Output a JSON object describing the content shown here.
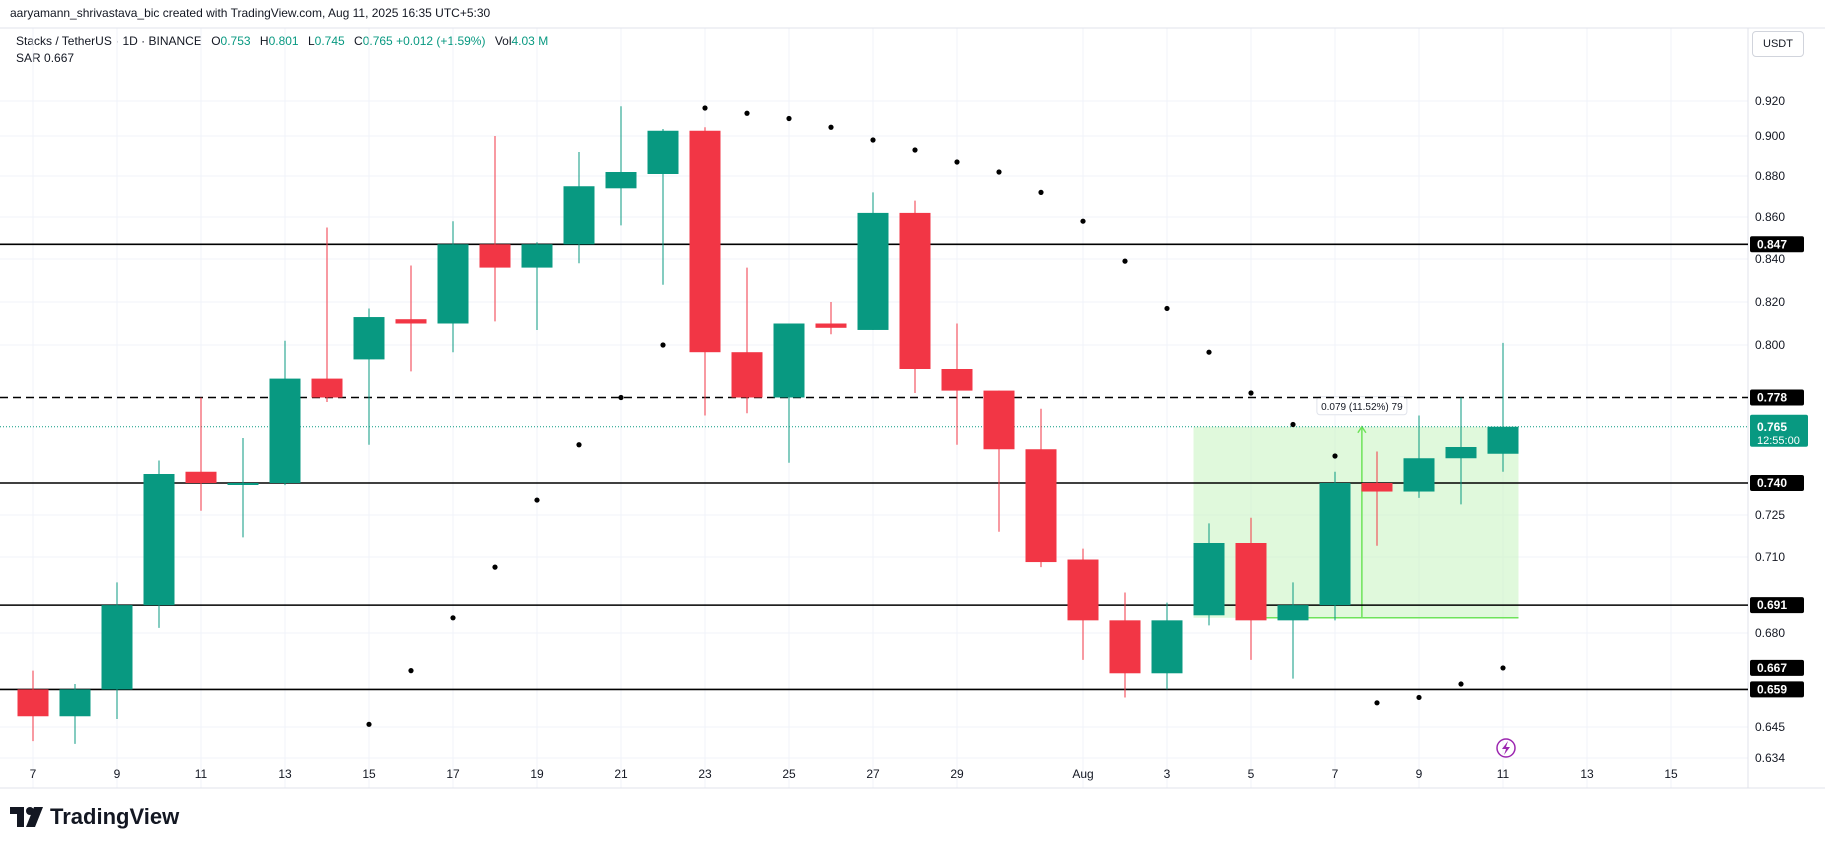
{
  "header": {
    "attribution": "aaryamann_shrivastava_bic created with TradingView.com, Aug 11, 2025 16:35 UTC+5:30"
  },
  "legend": {
    "symbol": "Stacks / TetherUS · 1D · BINANCE",
    "open_label": "O",
    "open": "0.753",
    "high_label": "H",
    "high": "0.801",
    "low_label": "L",
    "low": "0.745",
    "close_label": "C",
    "close": "0.765",
    "change": "+0.012 (+1.59%)",
    "vol_label": "Vol",
    "vol": "4.03 M"
  },
  "sar_legend": {
    "label": "SAR",
    "value": "0.667"
  },
  "currency_button": {
    "label": "USDT"
  },
  "logo": {
    "text": "TradingView"
  },
  "colors": {
    "up": "#089981",
    "down": "#f23645",
    "measure_fill": "#ccf5c4",
    "measure_line": "#6ee35a"
  },
  "chart_data": {
    "type": "candlestick",
    "title": "Stacks / TetherUS · 1D · BINANCE",
    "ylim": [
      0.634,
      0.93
    ],
    "y_ticks": [
      {
        "value": 0.92,
        "label": "0.920"
      },
      {
        "value": 0.9,
        "label": "0.900"
      },
      {
        "value": 0.88,
        "label": "0.880"
      },
      {
        "value": 0.86,
        "label": "0.860"
      },
      {
        "value": 0.84,
        "label": "0.840"
      },
      {
        "value": 0.82,
        "label": "0.820"
      },
      {
        "value": 0.8,
        "label": "0.800"
      },
      {
        "value": 0.725,
        "label": "0.725"
      },
      {
        "value": 0.71,
        "label": "0.710"
      },
      {
        "value": 0.68,
        "label": "0.680"
      },
      {
        "value": 0.645,
        "label": "0.645"
      },
      {
        "value": 0.634,
        "label": "0.634"
      }
    ],
    "x_ticks": [
      {
        "i": 0,
        "label": "7"
      },
      {
        "i": 2,
        "label": "9"
      },
      {
        "i": 4,
        "label": "11"
      },
      {
        "i": 6,
        "label": "13"
      },
      {
        "i": 8,
        "label": "15"
      },
      {
        "i": 10,
        "label": "17"
      },
      {
        "i": 12,
        "label": "19"
      },
      {
        "i": 14,
        "label": "21"
      },
      {
        "i": 16,
        "label": "23"
      },
      {
        "i": 18,
        "label": "25"
      },
      {
        "i": 20,
        "label": "27"
      },
      {
        "i": 22,
        "label": "29"
      },
      {
        "i": 25,
        "label": "Aug"
      },
      {
        "i": 27,
        "label": "3"
      },
      {
        "i": 29,
        "label": "5"
      },
      {
        "i": 31,
        "label": "7"
      },
      {
        "i": 33,
        "label": "9"
      },
      {
        "i": 35,
        "label": "11"
      },
      {
        "i": 37,
        "label": "13"
      },
      {
        "i": 39,
        "label": "15"
      }
    ],
    "candles": [
      {
        "o": 0.659,
        "h": 0.666,
        "l": 0.64,
        "c": 0.649
      },
      {
        "o": 0.649,
        "h": 0.661,
        "l": 0.639,
        "c": 0.659
      },
      {
        "o": 0.659,
        "h": 0.7,
        "l": 0.648,
        "c": 0.691
      },
      {
        "o": 0.691,
        "h": 0.75,
        "l": 0.682,
        "c": 0.744
      },
      {
        "o": 0.745,
        "h": 0.778,
        "l": 0.727,
        "c": 0.74
      },
      {
        "o": 0.74,
        "h": 0.76,
        "l": 0.717,
        "c": 0.74
      },
      {
        "o": 0.74,
        "h": 0.802,
        "l": 0.739,
        "c": 0.786
      },
      {
        "o": 0.786,
        "h": 0.855,
        "l": 0.776,
        "c": 0.778
      },
      {
        "o": 0.794,
        "h": 0.817,
        "l": 0.757,
        "c": 0.813
      },
      {
        "o": 0.812,
        "h": 0.837,
        "l": 0.789,
        "c": 0.81
      },
      {
        "o": 0.81,
        "h": 0.858,
        "l": 0.797,
        "c": 0.847
      },
      {
        "o": 0.847,
        "h": 0.9,
        "l": 0.811,
        "c": 0.836
      },
      {
        "o": 0.836,
        "h": 0.848,
        "l": 0.807,
        "c": 0.847
      },
      {
        "o": 0.847,
        "h": 0.892,
        "l": 0.838,
        "c": 0.875
      },
      {
        "o": 0.874,
        "h": 0.917,
        "l": 0.856,
        "c": 0.882
      },
      {
        "o": 0.881,
        "h": 0.904,
        "l": 0.828,
        "c": 0.903
      },
      {
        "o": 0.903,
        "h": 0.905,
        "l": 0.77,
        "c": 0.797
      },
      {
        "o": 0.797,
        "h": 0.836,
        "l": 0.771,
        "c": 0.778
      },
      {
        "o": 0.778,
        "h": 0.81,
        "l": 0.749,
        "c": 0.81
      },
      {
        "o": 0.81,
        "h": 0.82,
        "l": 0.805,
        "c": 0.808
      },
      {
        "o": 0.807,
        "h": 0.872,
        "l": 0.807,
        "c": 0.862
      },
      {
        "o": 0.862,
        "h": 0.868,
        "l": 0.78,
        "c": 0.79
      },
      {
        "o": 0.79,
        "h": 0.81,
        "l": 0.757,
        "c": 0.781
      },
      {
        "o": 0.781,
        "h": 0.781,
        "l": 0.719,
        "c": 0.755
      },
      {
        "o": 0.755,
        "h": 0.773,
        "l": 0.706,
        "c": 0.708
      },
      {
        "o": 0.709,
        "h": 0.713,
        "l": 0.67,
        "c": 0.685
      },
      {
        "o": 0.685,
        "h": 0.696,
        "l": 0.656,
        "c": 0.665
      },
      {
        "o": 0.665,
        "h": 0.692,
        "l": 0.659,
        "c": 0.685
      },
      {
        "o": 0.687,
        "h": 0.722,
        "l": 0.683,
        "c": 0.715
      },
      {
        "o": 0.715,
        "h": 0.724,
        "l": 0.67,
        "c": 0.685
      },
      {
        "o": 0.685,
        "h": 0.7,
        "l": 0.663,
        "c": 0.691
      },
      {
        "o": 0.691,
        "h": 0.745,
        "l": 0.685,
        "c": 0.74
      },
      {
        "o": 0.74,
        "h": 0.754,
        "l": 0.714,
        "c": 0.736
      },
      {
        "o": 0.736,
        "h": 0.77,
        "l": 0.733,
        "c": 0.751
      },
      {
        "o": 0.751,
        "h": 0.778,
        "l": 0.73,
        "c": 0.756
      },
      {
        "o": 0.753,
        "h": 0.801,
        "l": 0.745,
        "c": 0.765
      }
    ],
    "sar": [
      {
        "i": 8,
        "v": 0.646
      },
      {
        "i": 9,
        "v": 0.666
      },
      {
        "i": 10,
        "v": 0.686
      },
      {
        "i": 11,
        "v": 0.706
      },
      {
        "i": 12,
        "v": 0.732
      },
      {
        "i": 13,
        "v": 0.757
      },
      {
        "i": 14,
        "v": 0.778
      },
      {
        "i": 15,
        "v": 0.8
      },
      {
        "i": 16,
        "v": 0.916
      },
      {
        "i": 17,
        "v": 0.913
      },
      {
        "i": 18,
        "v": 0.91
      },
      {
        "i": 19,
        "v": 0.905
      },
      {
        "i": 20,
        "v": 0.898
      },
      {
        "i": 21,
        "v": 0.893
      },
      {
        "i": 22,
        "v": 0.887
      },
      {
        "i": 23,
        "v": 0.882
      },
      {
        "i": 24,
        "v": 0.872
      },
      {
        "i": 25,
        "v": 0.858
      },
      {
        "i": 26,
        "v": 0.839
      },
      {
        "i": 27,
        "v": 0.817
      },
      {
        "i": 28,
        "v": 0.797
      },
      {
        "i": 29,
        "v": 0.78
      },
      {
        "i": 30,
        "v": 0.766
      },
      {
        "i": 31,
        "v": 0.752
      },
      {
        "i": 32,
        "v": 0.654
      },
      {
        "i": 33,
        "v": 0.656
      },
      {
        "i": 34,
        "v": 0.661
      },
      {
        "i": 35,
        "v": 0.667
      }
    ],
    "horizontal_lines": [
      {
        "value": 0.847,
        "label": "0.847",
        "style": "solid"
      },
      {
        "value": 0.778,
        "label": "0.778",
        "style": "dashed"
      },
      {
        "value": 0.74,
        "label": "0.740",
        "style": "solid"
      },
      {
        "value": 0.691,
        "label": "0.691",
        "style": "solid"
      },
      {
        "value": 0.659,
        "label": "0.659",
        "style": "solid"
      }
    ],
    "axis_badges": [
      {
        "value": 0.667,
        "label": "0.667"
      }
    ],
    "last_price": {
      "value": 0.765,
      "label": "0.765",
      "countdown": "12:55:00"
    },
    "measurement": {
      "from_i": 28,
      "to_i": 35,
      "low": 0.686,
      "high": 0.765,
      "label": "0.079 (11.52%) 79"
    }
  }
}
